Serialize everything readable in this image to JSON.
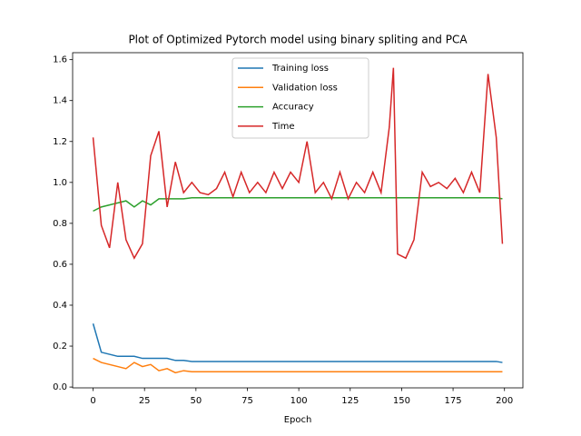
{
  "chart_data": {
    "type": "line",
    "title": "Plot of Optimized Pytorch model using binary spliting and PCA",
    "x_label": "Epoch",
    "x": [
      0,
      4,
      8,
      12,
      16,
      20,
      24,
      28,
      32,
      36,
      40,
      44,
      48,
      52,
      56,
      60,
      64,
      68,
      72,
      76,
      80,
      84,
      88,
      92,
      96,
      100,
      104,
      108,
      112,
      116,
      120,
      124,
      128,
      132,
      136,
      140,
      144,
      146,
      148,
      152,
      156,
      160,
      164,
      168,
      172,
      176,
      180,
      184,
      188,
      192,
      196,
      199
    ],
    "series": [
      {
        "name": "Training loss",
        "color": "#1f77b4",
        "values": [
          0.31,
          0.17,
          0.16,
          0.15,
          0.15,
          0.15,
          0.14,
          0.14,
          0.14,
          0.14,
          0.13,
          0.13,
          0.125,
          0.125,
          0.125,
          0.125,
          0.125,
          0.125,
          0.125,
          0.125,
          0.125,
          0.125,
          0.125,
          0.125,
          0.125,
          0.125,
          0.125,
          0.125,
          0.125,
          0.125,
          0.125,
          0.125,
          0.125,
          0.125,
          0.125,
          0.125,
          0.125,
          0.125,
          0.125,
          0.125,
          0.125,
          0.125,
          0.125,
          0.125,
          0.125,
          0.125,
          0.125,
          0.125,
          0.125,
          0.125,
          0.125,
          0.12
        ]
      },
      {
        "name": "Validation loss",
        "color": "#ff7f0e",
        "values": [
          0.14,
          0.12,
          0.11,
          0.1,
          0.09,
          0.12,
          0.1,
          0.11,
          0.08,
          0.09,
          0.07,
          0.08,
          0.075,
          0.075,
          0.075,
          0.075,
          0.075,
          0.075,
          0.075,
          0.075,
          0.075,
          0.075,
          0.075,
          0.075,
          0.075,
          0.075,
          0.075,
          0.075,
          0.075,
          0.075,
          0.075,
          0.075,
          0.075,
          0.075,
          0.075,
          0.075,
          0.075,
          0.075,
          0.075,
          0.075,
          0.075,
          0.075,
          0.075,
          0.075,
          0.075,
          0.075,
          0.075,
          0.075,
          0.075,
          0.075,
          0.075,
          0.075
        ]
      },
      {
        "name": "Accuracy",
        "color": "#2ca02c",
        "values": [
          0.86,
          0.88,
          0.89,
          0.9,
          0.91,
          0.88,
          0.91,
          0.89,
          0.92,
          0.92,
          0.92,
          0.92,
          0.925,
          0.925,
          0.925,
          0.925,
          0.925,
          0.925,
          0.925,
          0.925,
          0.925,
          0.925,
          0.925,
          0.925,
          0.925,
          0.925,
          0.925,
          0.925,
          0.925,
          0.925,
          0.925,
          0.925,
          0.925,
          0.925,
          0.925,
          0.925,
          0.925,
          0.925,
          0.925,
          0.925,
          0.925,
          0.925,
          0.925,
          0.925,
          0.925,
          0.925,
          0.925,
          0.925,
          0.925,
          0.925,
          0.925,
          0.92
        ]
      },
      {
        "name": "Time",
        "color": "#d62728",
        "values": [
          1.22,
          0.79,
          0.68,
          1.0,
          0.72,
          0.63,
          0.7,
          1.13,
          1.25,
          0.88,
          1.1,
          0.95,
          1.0,
          0.95,
          0.94,
          0.97,
          1.05,
          0.93,
          1.05,
          0.95,
          1.0,
          0.95,
          1.05,
          0.97,
          1.05,
          1.0,
          1.2,
          0.95,
          1.0,
          0.92,
          1.05,
          0.92,
          1.0,
          0.95,
          1.05,
          0.95,
          1.27,
          1.56,
          0.65,
          0.63,
          0.72,
          1.05,
          0.98,
          1.0,
          0.97,
          1.02,
          0.95,
          1.05,
          0.95,
          1.53,
          1.22,
          0.7
        ]
      }
    ],
    "xlim": [
      -9.95,
      208.95
    ],
    "ylim": [
      -0.004,
      1.634
    ],
    "xticks": [
      0,
      25,
      50,
      75,
      100,
      125,
      150,
      175,
      200
    ],
    "yticks": [
      {
        "value": 0,
        "label": "0.0"
      },
      0.2,
      0.4,
      0.6,
      0.8,
      {
        "value": 1,
        "label": "1.0"
      },
      1.2,
      1.4,
      1.6
    ],
    "legend": "upper center"
  }
}
